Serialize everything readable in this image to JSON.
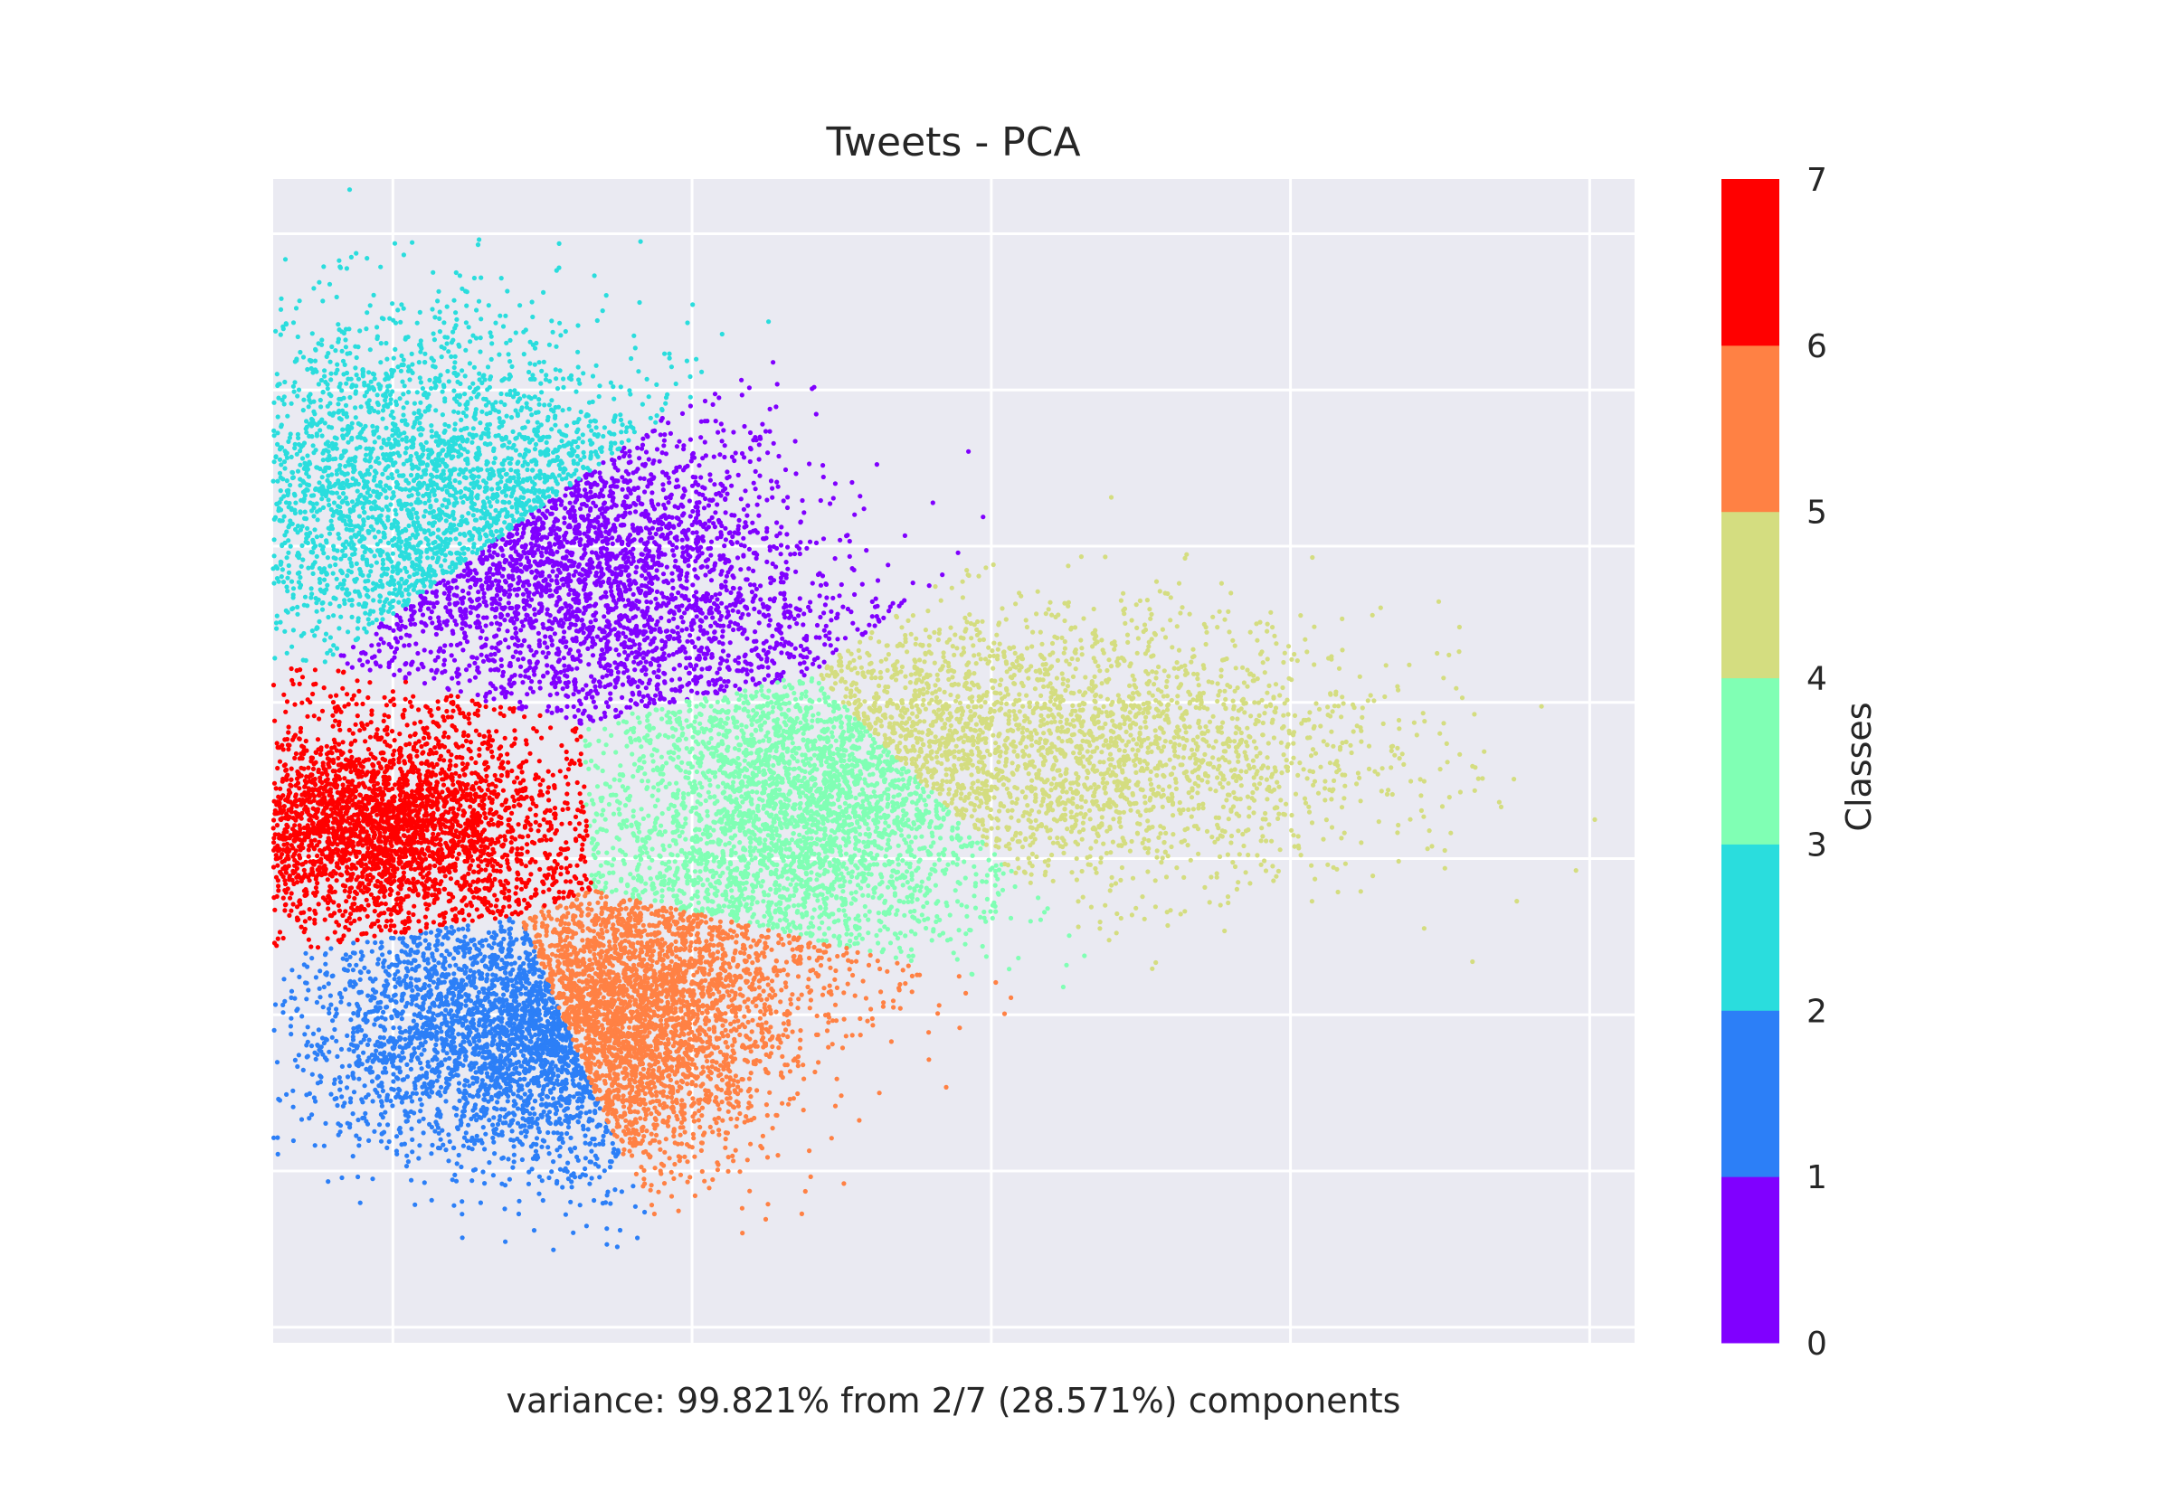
{
  "chart_data": {
    "type": "scatter",
    "title": "Tweets - PCA",
    "xlabel": "variance: 99.821% from 2/7 (28.571%) components",
    "ylabel": "",
    "x_tick_labels_visible": false,
    "y_tick_labels_visible": false,
    "grid": true,
    "style": "seaborn-darkgrid",
    "colormap": "rainbow (discrete, 7 classes)",
    "xlim": [
      -0.9,
      3.65
    ],
    "ylim": [
      -3.6,
      3.85
    ],
    "series_note": "Point cloud colored by class; cluster centers approximated from the figure",
    "series": [
      {
        "class": 0,
        "color": "#8000ff",
        "center": [
          0.2,
          1.3
        ],
        "spread": [
          0.35,
          0.6
        ],
        "approx_points": 3000
      },
      {
        "class": 1,
        "color": "#2c7ff7",
        "center": [
          -0.15,
          -1.6
        ],
        "spread": [
          0.35,
          0.4
        ],
        "approx_points": 3000
      },
      {
        "class": 2,
        "color": "#2adddd",
        "center": [
          -0.5,
          1.8
        ],
        "spread": [
          0.35,
          0.6
        ],
        "approx_points": 3000
      },
      {
        "class": 3,
        "color": "#80ffb4",
        "center": [
          0.85,
          -0.25
        ],
        "spread": [
          0.3,
          0.55
        ],
        "approx_points": 3000
      },
      {
        "class": 4,
        "color": "#d4dd80",
        "center": [
          1.7,
          0.2
        ],
        "spread": [
          0.55,
          0.45
        ],
        "approx_points": 3000
      },
      {
        "class": 5,
        "color": "#ff8144",
        "center": [
          0.3,
          -1.5
        ],
        "spread": [
          0.25,
          0.5
        ],
        "approx_points": 3000
      },
      {
        "class": 6,
        "color": "#ff0000",
        "center": [
          -0.55,
          -0.3
        ],
        "spread": [
          0.28,
          0.3
        ],
        "approx_points": 3000
      }
    ],
    "colorbar": {
      "label": "Classes",
      "ticks": [
        "0",
        "1",
        "2",
        "3",
        "4",
        "5",
        "6",
        "7"
      ],
      "colors": [
        "#8000ff",
        "#2c7ff7",
        "#2adddd",
        "#80ffb4",
        "#d4dd80",
        "#ff8144",
        "#ff0000"
      ]
    },
    "colors": {
      "axes_background": "#eaeaf2",
      "grid": "#ffffff",
      "text": "#262626"
    }
  }
}
